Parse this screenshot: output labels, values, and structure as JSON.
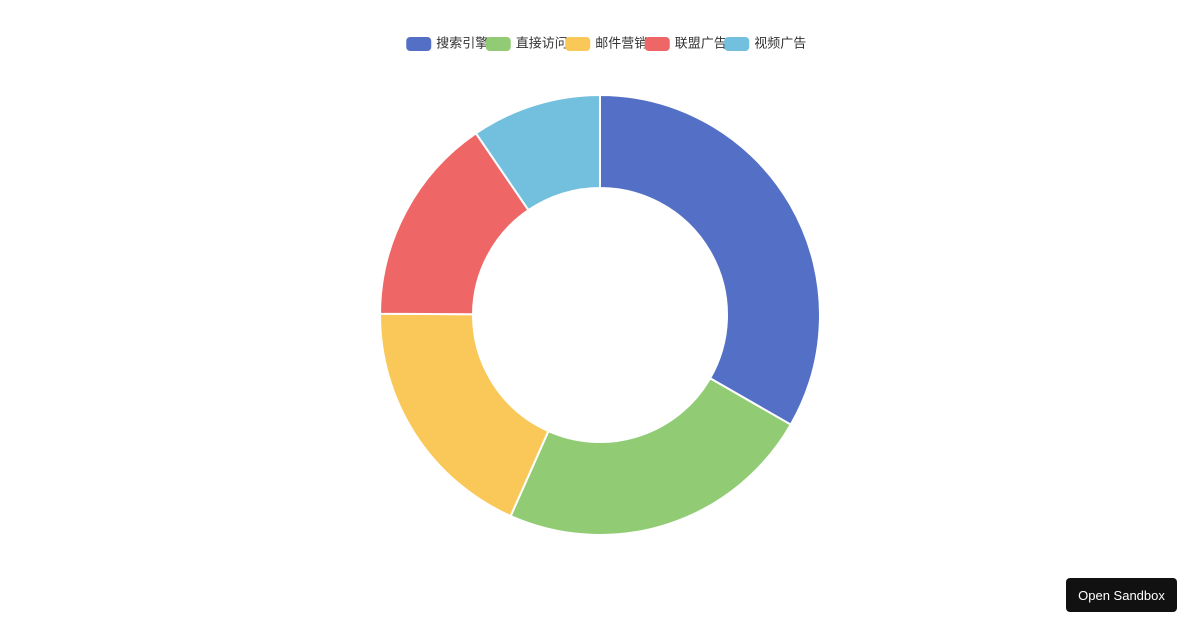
{
  "chart_data": {
    "type": "pie",
    "categories": [
      "搜索引擎",
      "直接访问",
      "邮件营销",
      "联盟广告",
      "视频广告"
    ],
    "values": [
      1048,
      735,
      580,
      484,
      300
    ],
    "colors": [
      "#5470c6",
      "#91cc75",
      "#fac858",
      "#ee6666",
      "#73c0de"
    ],
    "legend": "top"
  },
  "button": {
    "label": "Open Sandbox"
  }
}
